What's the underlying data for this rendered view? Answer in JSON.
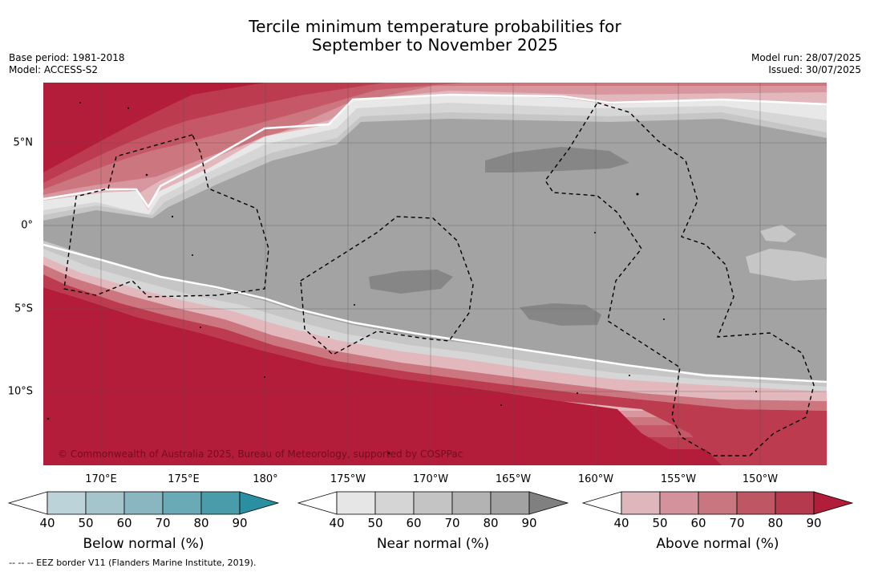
{
  "title_line1": "Tercile minimum temperature probabilities for",
  "title_line2": "September to November 2025",
  "meta_left": {
    "base_period": "Base period: 1981-2018",
    "model": "Model: ACCESS-S2"
  },
  "meta_right": {
    "model_run": "Model run: 28/07/2025",
    "issued": "Issued: 30/07/2025"
  },
  "lat_labels": [
    "5°N",
    "0°",
    "5°S",
    "10°S"
  ],
  "lon_labels": [
    "170°E",
    "175°E",
    "180°",
    "175°W",
    "170°W",
    "165°W",
    "160°W",
    "155°W",
    "150°W"
  ],
  "copyright": "© Commonwealth of Australia 2025, Bureau of Meteorology, supported by COSPPac",
  "footnote": "--  --  -- EEZ border V11 (Flanders Marine Institute, 2019).",
  "colorbars": [
    {
      "title": "Below normal (%)",
      "ticks": [
        "40",
        "50",
        "60",
        "70",
        "80",
        "90"
      ],
      "colors": [
        "#ffffff",
        "#bdd3da",
        "#a5c5cc",
        "#89b6c0",
        "#6aa9b6",
        "#4a9cab",
        "#2b8fa2"
      ]
    },
    {
      "title": "Near normal (%)",
      "ticks": [
        "40",
        "50",
        "60",
        "70",
        "80",
        "90"
      ],
      "colors": [
        "#ffffff",
        "#e6e6e6",
        "#d5d5d5",
        "#c4c4c4",
        "#b3b3b3",
        "#a2a2a2",
        "#808080"
      ]
    },
    {
      "title": "Above normal (%)",
      "ticks": [
        "40",
        "50",
        "60",
        "70",
        "80",
        "90"
      ],
      "colors": [
        "#ffffff",
        "#e0b6bd",
        "#d4939c",
        "#c87680",
        "#bf5664",
        "#b63a4d",
        "#b11e3a"
      ]
    }
  ],
  "map_colors": {
    "above_90": "#b31d3a",
    "above_80": "#bc3b4e",
    "above_70": "#c55766",
    "above_60": "#cc7680",
    "above_50": "#d8969e",
    "above_40": "#e2b8bd",
    "near_40": "#e8e8e8",
    "near_50": "#d6d6d6",
    "near_60": "#c6c6c6",
    "near_80": "#a3a3a3",
    "near_90": "#868686"
  }
}
